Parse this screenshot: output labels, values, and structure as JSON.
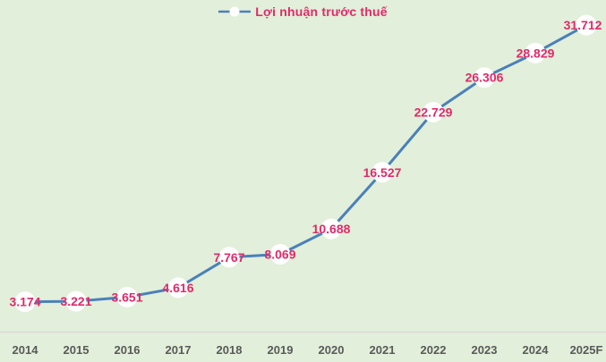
{
  "chart_data": {
    "type": "line",
    "title": "",
    "xlabel": "",
    "ylabel": "",
    "grid": false,
    "legend_position": "top-center",
    "categories": [
      "2014",
      "2015",
      "2016",
      "2017",
      "2018",
      "2019",
      "2020",
      "2021",
      "2022",
      "2023",
      "2024",
      "2025F"
    ],
    "series": [
      {
        "name": "Lợi nhuận trước thuế",
        "values": [
          3174,
          3221,
          3651,
          4616,
          7767,
          8069,
          10688,
          16527,
          22729,
          26306,
          28829,
          31712
        ],
        "labels": [
          "3.174",
          "3.221",
          "3.651",
          "4.616",
          "7.767",
          "8.069",
          "10.688",
          "16.527",
          "22.729",
          "26.306",
          "28.829",
          "31.712"
        ]
      }
    ],
    "ylim": [
      0,
      34300
    ],
    "data_label_placement": "center-on-point",
    "colors": {
      "background": "#e2efda",
      "line": "#4a80ba",
      "marker_fill": "#ffffff",
      "data_label": "#e02a6a",
      "axis_label": "#595959",
      "axis_line": "#d9d9d9"
    }
  }
}
